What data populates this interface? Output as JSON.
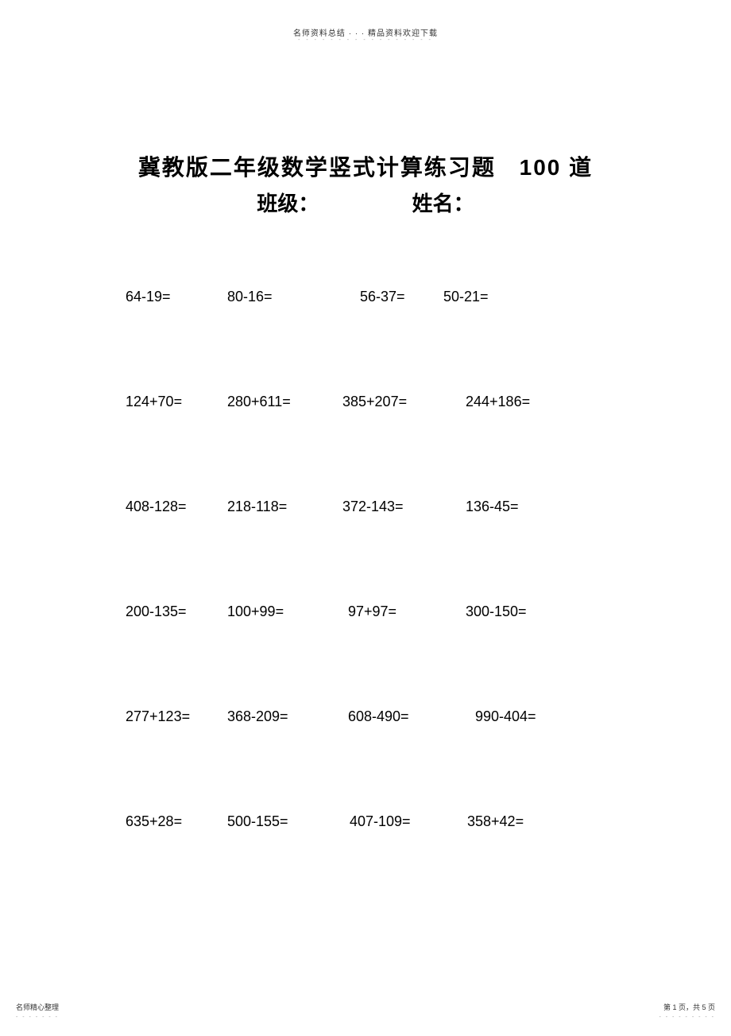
{
  "header": {
    "small_text": "名师资料总结 · · · 精品资料欢迎下载",
    "dots": "- - - - - - - - - - - - - - - - -"
  },
  "title": {
    "main_left": "冀教版二年级数学竖式计算练习题",
    "main_right": "100 道",
    "class_label": "班级：",
    "name_label": "姓名："
  },
  "problems": {
    "rows": [
      {
        "cells": [
          "64-19=",
          "80-16=",
          "56-37=",
          "50-21="
        ],
        "col_offsets": [
          0,
          128,
          295,
          400
        ]
      },
      {
        "cells": [
          "124+70=",
          "280+611=",
          "385+207=",
          "244+186="
        ],
        "col_offsets": [
          0,
          128,
          273,
          428
        ]
      },
      {
        "cells": [
          "408-128=",
          "218-118=",
          "372-143=",
          "136-45="
        ],
        "col_offsets": [
          0,
          128,
          273,
          428
        ]
      },
      {
        "cells": [
          "200-135=",
          "100+99=",
          "97+97=",
          "300-150="
        ],
        "col_offsets": [
          0,
          128,
          280,
          428
        ]
      },
      {
        "cells": [
          "277+123=",
          "368-209=",
          "608-490=",
          "990-404="
        ],
        "col_offsets": [
          0,
          128,
          280,
          440
        ]
      },
      {
        "cells": [
          "635+28=",
          "500-155=",
          "407-109=",
          "358+42="
        ],
        "col_offsets": [
          0,
          128,
          282,
          430
        ]
      }
    ],
    "font_size": 18,
    "text_color": "#000000",
    "row_spacing": 110
  },
  "footer": {
    "left_text": "名师精心整理",
    "left_dots": "- - - - - - -",
    "right_text": "第 1 页，共 5 页",
    "right_dots": "- - - - - - - - -"
  },
  "styles": {
    "background_color": "#ffffff",
    "title_fontsize": 28,
    "subtitle_fontsize": 26,
    "header_small_fontsize": 10,
    "footer_fontsize": 9
  }
}
